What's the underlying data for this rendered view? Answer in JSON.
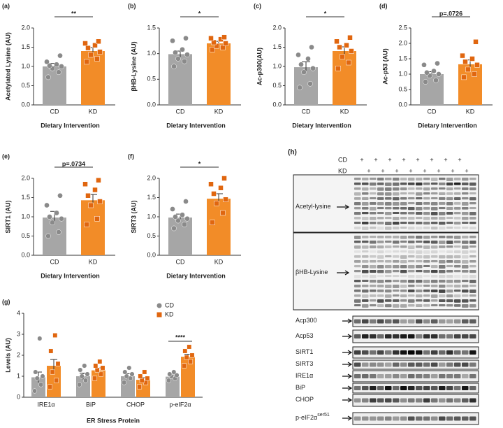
{
  "chart_data": [
    {
      "type": "bar",
      "label": "(a)",
      "ylabel": "Acetylated Lysine (AU)",
      "xlabel": "Dietary Intervention",
      "categories": [
        "CD",
        "KD"
      ],
      "values": [
        1.0,
        1.4
      ],
      "errors": [
        0.08,
        0.09
      ],
      "colors": [
        "#a6a6a6",
        "#f28c28"
      ],
      "points": [
        [
          0.72,
          0.85,
          0.95,
          1.0,
          1.02,
          1.05,
          1.12,
          1.28
        ],
        [
          1.12,
          1.2,
          1.3,
          1.38,
          1.48,
          1.55,
          1.6,
          1.65
        ]
      ],
      "ylim": [
        0,
        2
      ],
      "yticks": [
        {
          "value": 0,
          "label": "0.0"
        },
        {
          "value": 0.5,
          "label": "0.5"
        },
        {
          "value": 1,
          "label": "1.0"
        },
        {
          "value": 1.5,
          "label": "1.5"
        },
        {
          "value": 2,
          "label": "2.0"
        }
      ],
      "significance": "**"
    },
    {
      "type": "bar",
      "label": "(b)",
      "ylabel": "βHB-Lysine (AU)",
      "xlabel": "Dietary Intervention",
      "categories": [
        "CD",
        "KD"
      ],
      "values": [
        0.99,
        1.2
      ],
      "errors": [
        0.06,
        0.04
      ],
      "colors": [
        "#a6a6a6",
        "#f28c28"
      ],
      "points": [
        [
          0.75,
          0.85,
          0.9,
          0.98,
          1.02,
          1.08,
          1.25,
          1.3
        ],
        [
          1.08,
          1.12,
          1.15,
          1.2,
          1.22,
          1.28,
          1.3,
          1.32
        ]
      ],
      "ylim": [
        0,
        1.5
      ],
      "yticks": [
        {
          "value": 0,
          "label": "0.0"
        },
        {
          "value": 0.5,
          "label": "0.5"
        },
        {
          "value": 1,
          "label": "1.0"
        },
        {
          "value": 1.5,
          "label": "1.5"
        }
      ],
      "significance": "*"
    },
    {
      "type": "bar",
      "label": "(c)",
      "ylabel": "Ac-p300(AU)",
      "xlabel": "Dietary Intervention",
      "categories": [
        "CD",
        "KD"
      ],
      "values": [
        0.98,
        1.4
      ],
      "errors": [
        0.14,
        0.11
      ],
      "colors": [
        "#a6a6a6",
        "#f28c28"
      ],
      "points": [
        [
          0.45,
          0.55,
          0.85,
          0.95,
          1.05,
          1.2,
          1.3,
          1.5
        ],
        [
          0.95,
          1.1,
          1.25,
          1.4,
          1.5,
          1.55,
          1.65,
          1.75
        ]
      ],
      "ylim": [
        0,
        2
      ],
      "yticks": [
        {
          "value": 0,
          "label": "0.0"
        },
        {
          "value": 0.5,
          "label": "0.5"
        },
        {
          "value": 1,
          "label": "1.0"
        },
        {
          "value": 1.5,
          "label": "1.5"
        },
        {
          "value": 2,
          "label": "2.0"
        }
      ],
      "significance": "*"
    },
    {
      "type": "bar",
      "label": "(d)",
      "ylabel": "Ac-p53 (AU)",
      "xlabel": "Dietary Intervention",
      "categories": [
        "CD",
        "KD"
      ],
      "values": [
        1.0,
        1.32
      ],
      "errors": [
        0.08,
        0.14
      ],
      "colors": [
        "#a6a6a6",
        "#f28c28"
      ],
      "points": [
        [
          0.75,
          0.8,
          0.95,
          1.0,
          1.05,
          1.1,
          1.3,
          1.35
        ],
        [
          0.9,
          1.0,
          1.15,
          1.3,
          1.4,
          1.5,
          1.6,
          2.05
        ]
      ],
      "ylim": [
        0,
        2.5
      ],
      "yticks": [
        {
          "value": 0,
          "label": "0.0"
        },
        {
          "value": 0.5,
          "label": "0.5"
        },
        {
          "value": 1,
          "label": "1.0"
        },
        {
          "value": 1.5,
          "label": "1.5"
        },
        {
          "value": 2,
          "label": "2.0"
        },
        {
          "value": 2.5,
          "label": "2.5"
        }
      ],
      "significance": "p=.0726"
    },
    {
      "type": "bar",
      "label": "(e)",
      "ylabel": "SIRT1 (AU)",
      "xlabel": "Dietary Intervention",
      "categories": [
        "CD",
        "KD"
      ],
      "values": [
        0.98,
        1.43
      ],
      "errors": [
        0.16,
        0.15
      ],
      "colors": [
        "#a6a6a6",
        "#f28c28"
      ],
      "points": [
        [
          0.5,
          0.6,
          0.85,
          0.95,
          1.0,
          1.1,
          1.3,
          1.55
        ],
        [
          0.8,
          0.95,
          1.3,
          1.4,
          1.55,
          1.7,
          1.85,
          1.95
        ]
      ],
      "ylim": [
        0,
        2
      ],
      "yticks": [
        {
          "value": 0,
          "label": "0.0"
        },
        {
          "value": 0.5,
          "label": "0.5"
        },
        {
          "value": 1,
          "label": "1.0"
        },
        {
          "value": 1.5,
          "label": "1.5"
        },
        {
          "value": 2,
          "label": "2.0"
        }
      ],
      "significance": "p=.0734"
    },
    {
      "type": "bar",
      "label": "(f)",
      "ylabel": "SIRT3 (AU)",
      "xlabel": "Dietary Intervention",
      "categories": [
        "CD",
        "KD"
      ],
      "values": [
        0.98,
        1.47
      ],
      "errors": [
        0.09,
        0.13
      ],
      "colors": [
        "#a6a6a6",
        "#f28c28"
      ],
      "points": [
        [
          0.7,
          0.8,
          0.9,
          0.95,
          1.0,
          1.05,
          1.2,
          1.4
        ],
        [
          0.85,
          1.1,
          1.35,
          1.45,
          1.6,
          1.75,
          1.85,
          2.0
        ]
      ],
      "ylim": [
        0,
        2
      ],
      "yticks": [
        {
          "value": 0,
          "label": "0.0"
        },
        {
          "value": 0.5,
          "label": "0.5"
        },
        {
          "value": 1,
          "label": "1.0"
        },
        {
          "value": 1.5,
          "label": "1.5"
        },
        {
          "value": 2,
          "label": "2.0"
        }
      ],
      "significance": "*"
    },
    {
      "type": "grouped_bar",
      "label": "(g)",
      "ylabel": "Levels (AU)",
      "xlabel": "ER Stress Protein",
      "categories": [
        "IRE1α",
        "BiP",
        "CHOP",
        "p-eIF2α"
      ],
      "legend": "upper right",
      "series": [
        {
          "name": "CD",
          "color": "#a6a6a6",
          "values": [
            0.95,
            1.0,
            1.0,
            0.98
          ],
          "errors": [
            0.25,
            0.15,
            0.12,
            0.08
          ],
          "points": [
            [
              0.3,
              0.6,
              0.9,
              1.0,
              1.2,
              2.8
            ],
            [
              0.6,
              0.8,
              1.0,
              1.1,
              1.3,
              1.5
            ],
            [
              0.7,
              0.9,
              1.0,
              1.1,
              1.2,
              1.4
            ],
            [
              0.8,
              0.9,
              1.0,
              1.05,
              1.1,
              1.2
            ]
          ]
        },
        {
          "name": "KD",
          "color": "#f28c28",
          "values": [
            1.5,
            1.28,
            0.83,
            1.93
          ],
          "errors": [
            0.3,
            0.12,
            0.1,
            0.12
          ],
          "points": [
            [
              0.5,
              0.8,
              1.2,
              1.6,
              2.2,
              2.95
            ],
            [
              0.9,
              1.1,
              1.3,
              1.4,
              1.5,
              1.7
            ],
            [
              0.5,
              0.7,
              0.8,
              0.9,
              1.0,
              1.2
            ],
            [
              1.5,
              1.7,
              1.9,
              2.0,
              2.2,
              2.4
            ]
          ]
        }
      ],
      "ylim": [
        0,
        4
      ],
      "yticks": [
        0,
        1,
        2,
        3,
        4
      ],
      "significance": [
        null,
        null,
        null,
        "****"
      ]
    }
  ],
  "blot": {
    "label": "(h)",
    "rows": [
      {
        "label": "CD",
        "marks": [
          "+",
          "+",
          "+",
          "+",
          "+",
          "+",
          "+",
          "+"
        ]
      },
      {
        "label": "KD",
        "marks": [
          "+",
          "+",
          "+",
          "+",
          "+",
          "+",
          "+",
          "+"
        ]
      }
    ],
    "bands": [
      {
        "label": "Acetyl-lysine"
      },
      {
        "label": "βHB-Lysine"
      },
      {
        "label": "Acp300"
      },
      {
        "label": "Acp53"
      },
      {
        "label": "SIRT1"
      },
      {
        "label": "SIRT3"
      },
      {
        "label": "IRE1α"
      },
      {
        "label": "BiP"
      },
      {
        "label": "CHOP"
      },
      {
        "label": "p-eIF2α",
        "superscript": "ser51"
      }
    ]
  }
}
